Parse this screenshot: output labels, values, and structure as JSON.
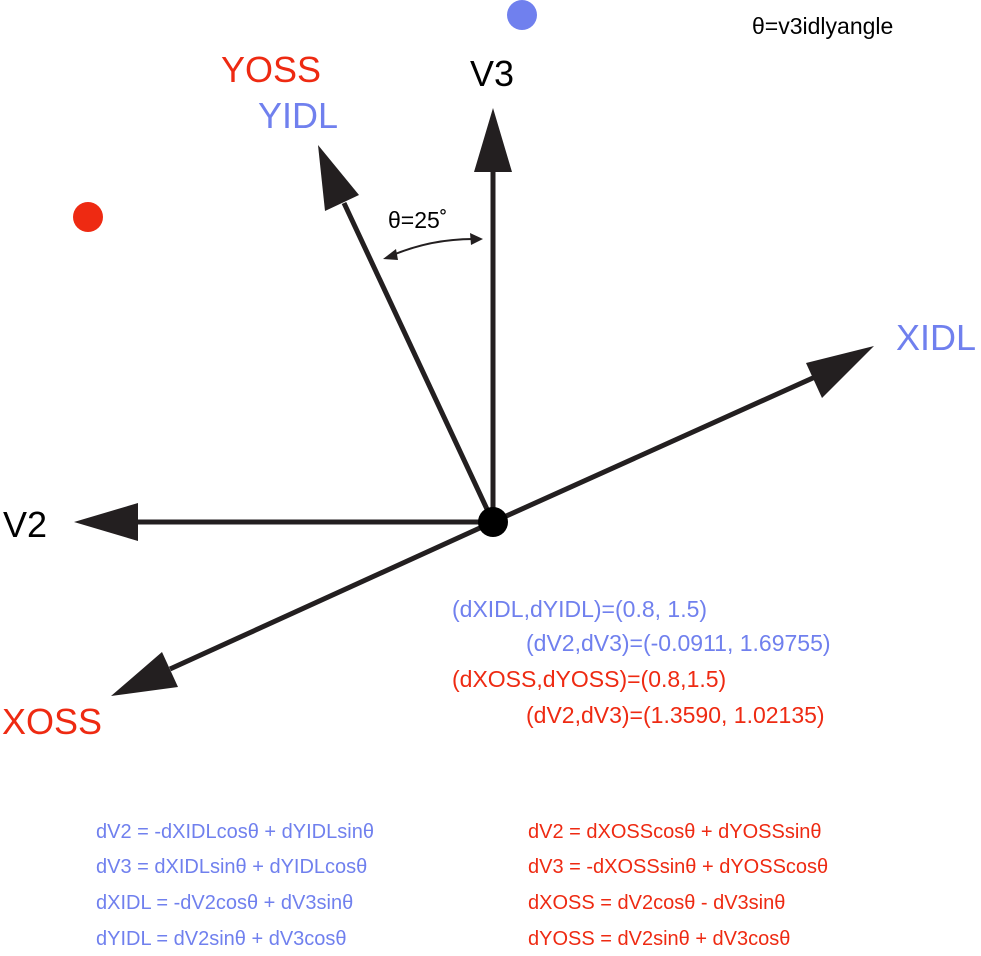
{
  "colors": {
    "axis": "#231f20",
    "idl": "#7080ee",
    "oss": "#ee2a12",
    "text": "#000000"
  },
  "header": {
    "angle_definition": "θ=v3idlyangle"
  },
  "axes": {
    "v2": "V2",
    "v3": "V3",
    "xidl": "XIDL",
    "yidl": "YIDL",
    "xoss": "XOSS",
    "yoss": "YOSS"
  },
  "angle_label": "θ=25˚",
  "results": {
    "idl_input": "(dXIDL,dYIDL)=(0.8, 1.5)",
    "idl_output": "(dV2,dV3)=(-0.0911, 1.69755)",
    "oss_input": "(dXOSS,dYOSS)=(0.8,1.5)",
    "oss_output": "(dV2,dV3)=(1.3590, 1.02135)"
  },
  "equations": {
    "idl": [
      "dV2 = -dXIDLcosθ + dYIDLsinθ",
      "dV3 = dXIDLsinθ + dYIDLcosθ",
      "dXIDL = -dV2cosθ + dV3sinθ",
      "dYIDL = dV2sinθ + dV3cosθ"
    ],
    "oss": [
      "dV2 = dXOSScosθ + dYOSSsinθ",
      "dV3 = -dXOSSsinθ + dYOSScosθ",
      "dXOSS = dV2cosθ - dV3sinθ",
      "dYOSS = dV2sinθ + dV3cosθ"
    ]
  }
}
